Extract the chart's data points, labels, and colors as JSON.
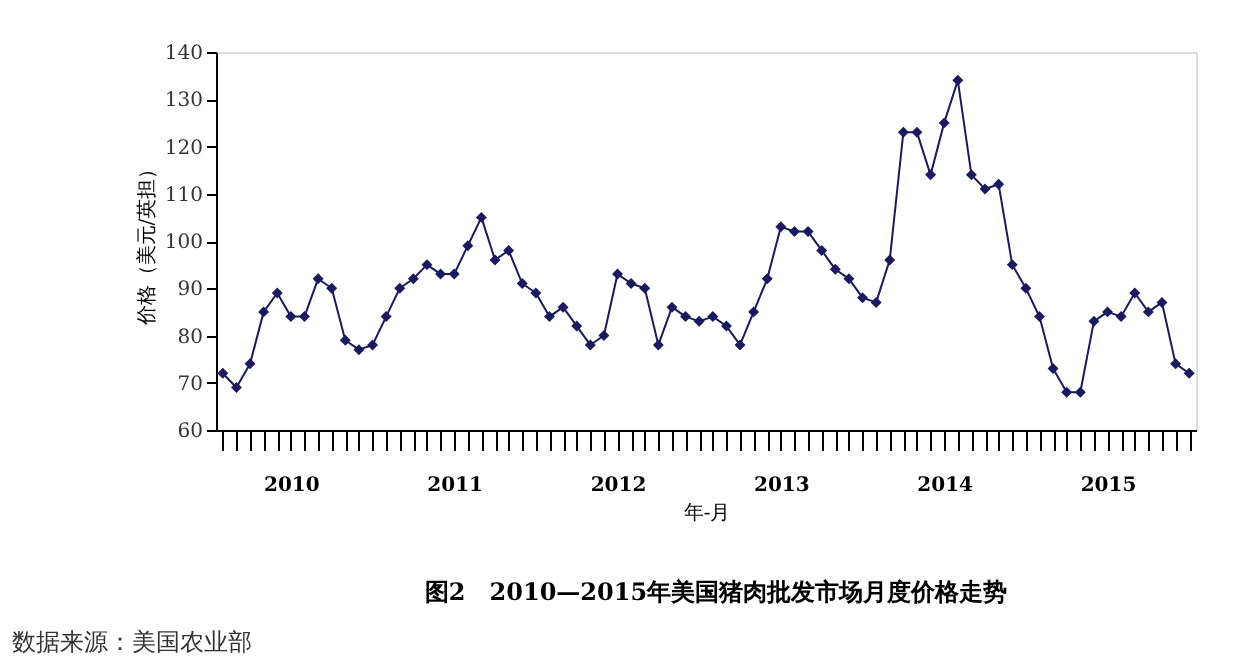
{
  "chart_data": {
    "type": "line",
    "title": "图2　2010—2015年美国猪肉批发市场月度价格走势",
    "xlabel": "年-月",
    "ylabel": "价格（美元/英担）",
    "annotations": [
      "数据来源：美国农业部"
    ],
    "categories": [
      null,
      null,
      null,
      null,
      null,
      "2010",
      null,
      null,
      null,
      null,
      null,
      null,
      null,
      null,
      null,
      null,
      null,
      "2011",
      null,
      null,
      null,
      null,
      null,
      null,
      null,
      null,
      null,
      null,
      null,
      "2012",
      null,
      null,
      null,
      null,
      null,
      null,
      null,
      null,
      null,
      null,
      null,
      "2013",
      null,
      null,
      null,
      null,
      null,
      null,
      null,
      null,
      null,
      null,
      null,
      "2014",
      null,
      null,
      null,
      null,
      null,
      null,
      null,
      null,
      null,
      null,
      null,
      "2015",
      null,
      null,
      null,
      null,
      null,
      null
    ],
    "series": [
      {
        "color": "#1a1a5e",
        "values": [
          72,
          69,
          74,
          85,
          89,
          84,
          84,
          92,
          90,
          79,
          77,
          78,
          84,
          90,
          92,
          95,
          93,
          93,
          99,
          105,
          96,
          98,
          91,
          89,
          84,
          86,
          82,
          78,
          80,
          93,
          91,
          90,
          78,
          86,
          84,
          83,
          84,
          82,
          78,
          85,
          92,
          103,
          102,
          102,
          98,
          94,
          92,
          88,
          87,
          96,
          123,
          123,
          114,
          125,
          134,
          114,
          111,
          112,
          95,
          90,
          84,
          73,
          68,
          68,
          83,
          85,
          84,
          89,
          85,
          87,
          74,
          72
        ]
      }
    ],
    "ylim": [
      60,
      140
    ],
    "yticks": [
      60,
      70,
      80,
      90,
      100,
      110,
      120,
      130,
      140
    ],
    "grid": false,
    "marker": "diamond",
    "line_style": "solid"
  }
}
